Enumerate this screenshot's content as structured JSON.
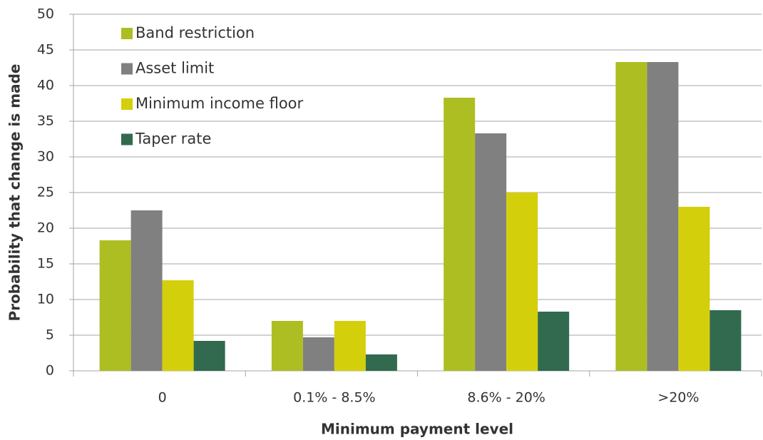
{
  "chart_data": {
    "type": "bar",
    "x_label": "Minimum payment level",
    "y_label": "Probability that change is made",
    "categories": [
      "0",
      "0.1% - 8.5%",
      "8.6% - 20%",
      ">20%"
    ],
    "series": [
      {
        "name": "Band restriction",
        "color": "#adbe23",
        "values": [
          18.3,
          7,
          38.3,
          43.3
        ]
      },
      {
        "name": "Asset limit",
        "color": "#808080",
        "values": [
          22.5,
          4.7,
          33.3,
          43.3
        ]
      },
      {
        "name": "Minimum income floor",
        "color": "#d4cf0b",
        "values": [
          12.7,
          7,
          25,
          23
        ]
      },
      {
        "name": "Taper rate",
        "color": "#316a4e",
        "values": [
          4.2,
          2.3,
          8.3,
          8.5
        ]
      }
    ],
    "ylim": [
      0,
      50
    ],
    "yticks": [
      0,
      5,
      10,
      15,
      20,
      25,
      30,
      35,
      40,
      45,
      50
    ],
    "grid": true,
    "legend": "top-left"
  }
}
